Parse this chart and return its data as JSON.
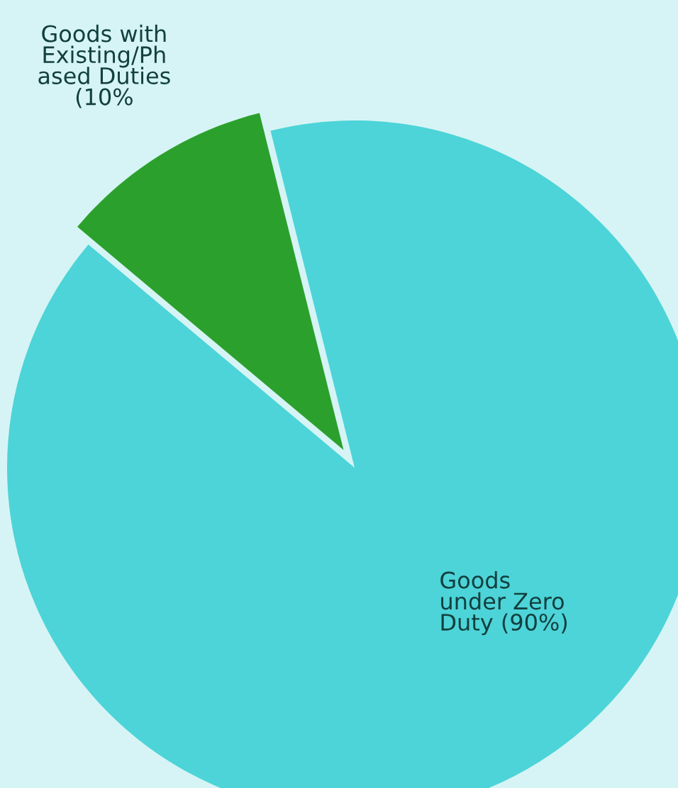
{
  "chart_data": {
    "type": "pie",
    "categories": [
      "Goods with\nExisting/Ph\nased Duties\n(10%",
      "Goods\nunder Zero\nDuty (90%)"
    ],
    "values": [
      10,
      90
    ],
    "colors": [
      "#2ca02c",
      "#4dd4d8"
    ]
  }
}
